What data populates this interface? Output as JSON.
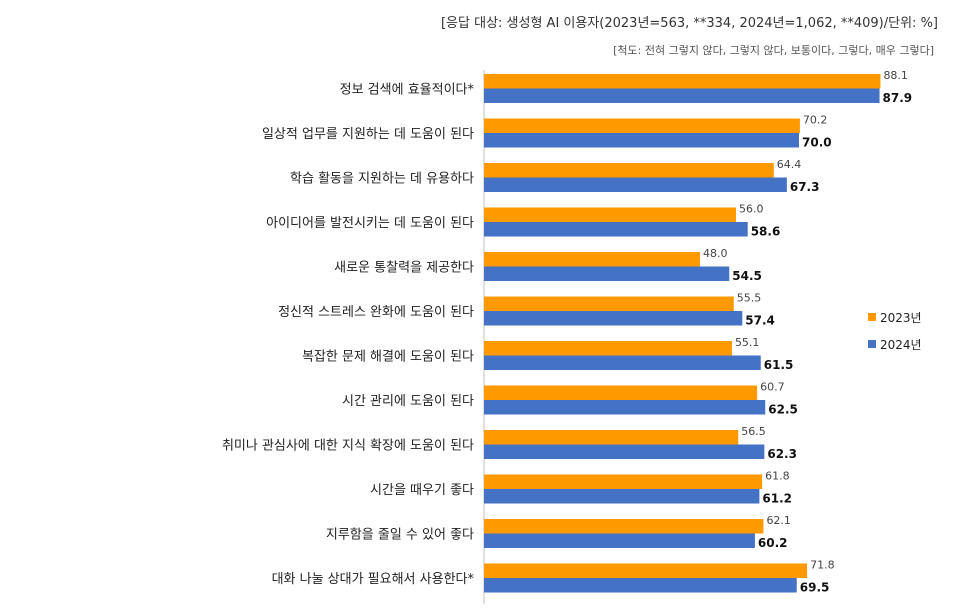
{
  "header": {
    "note": "[응답 대상: 생성형 AI 이용자(2023년=563, **334, 2024년=1,062, **409)/단위: %]",
    "scale": "[척도: 전혀 그렇지 않다, 그렇지 않다, 보통이다, 그렇다, 매우 그렇다]"
  },
  "chart_data": {
    "type": "bar",
    "orientation": "horizontal",
    "categories": [
      "정보 검색에 효율적이다*",
      "일상적 업무를 지원하는 데 도움이 된다",
      "학습 활동을 지원하는 데 유용하다",
      "아이디어를 발전시키는 데 도움이 된다",
      "새로운 통찰력을 제공한다",
      "정신적 스트레스 완화에 도움이 된다",
      "복잡한 문제 해결에 도움이 된다",
      "시간 관리에 도움이 된다",
      "취미나 관심사에 대한 지식 확장에 도움이 된다",
      "시간을 때우기 좋다",
      "지루함을 줄일 수 있어 좋다",
      "대화 나눌 상대가 필요해서 사용한다*"
    ],
    "series": [
      {
        "name": "2023년",
        "color": "#FF9900",
        "values": [
          88.1,
          70.2,
          64.4,
          56.0,
          48.0,
          55.5,
          55.1,
          60.7,
          56.5,
          61.8,
          62.1,
          71.8
        ]
      },
      {
        "name": "2024년",
        "color": "#4472C4",
        "values": [
          87.9,
          70.0,
          67.3,
          58.6,
          54.5,
          57.4,
          61.5,
          62.5,
          62.3,
          61.2,
          60.2,
          69.5
        ]
      }
    ],
    "xlim": [
      0,
      100
    ],
    "legend_position": "right"
  }
}
